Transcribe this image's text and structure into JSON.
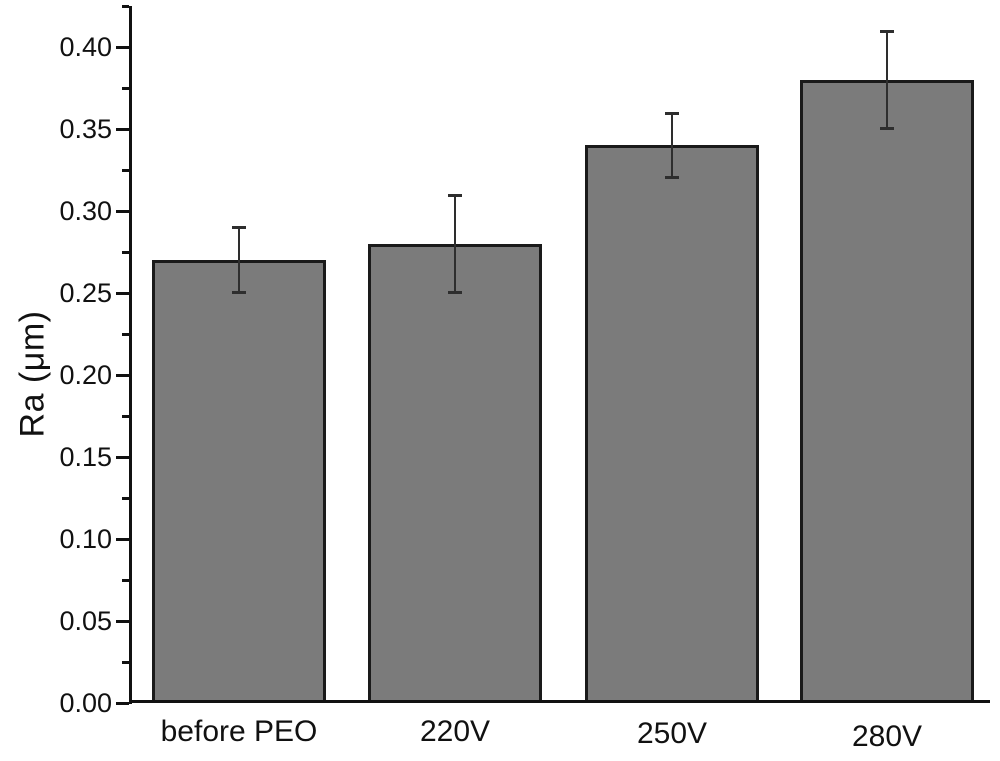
{
  "chart_data": {
    "type": "bar",
    "title": "",
    "xlabel": "",
    "ylabel": "Ra (μm)",
    "categories": [
      "before PEO",
      "220V",
      "250V",
      "280V"
    ],
    "values": [
      0.27,
      0.28,
      0.34,
      0.38
    ],
    "errors": [
      0.02,
      0.03,
      0.02,
      0.03
    ],
    "series_name": "Ra",
    "ylim": [
      0,
      0.425
    ],
    "ytick_step": 0.05,
    "ytick_minor_step": 0.025,
    "ytick_labels": [
      "0.00",
      "0.05",
      "0.10",
      "0.15",
      "0.20",
      "0.25",
      "0.30",
      "0.35",
      "0.40"
    ],
    "grid": false,
    "legend": false,
    "bar_color": "#7b7b7b",
    "bar_border_color": "#1a1a1a",
    "error_bar_color": "#2e2e2e",
    "axis_color": "#111111"
  }
}
